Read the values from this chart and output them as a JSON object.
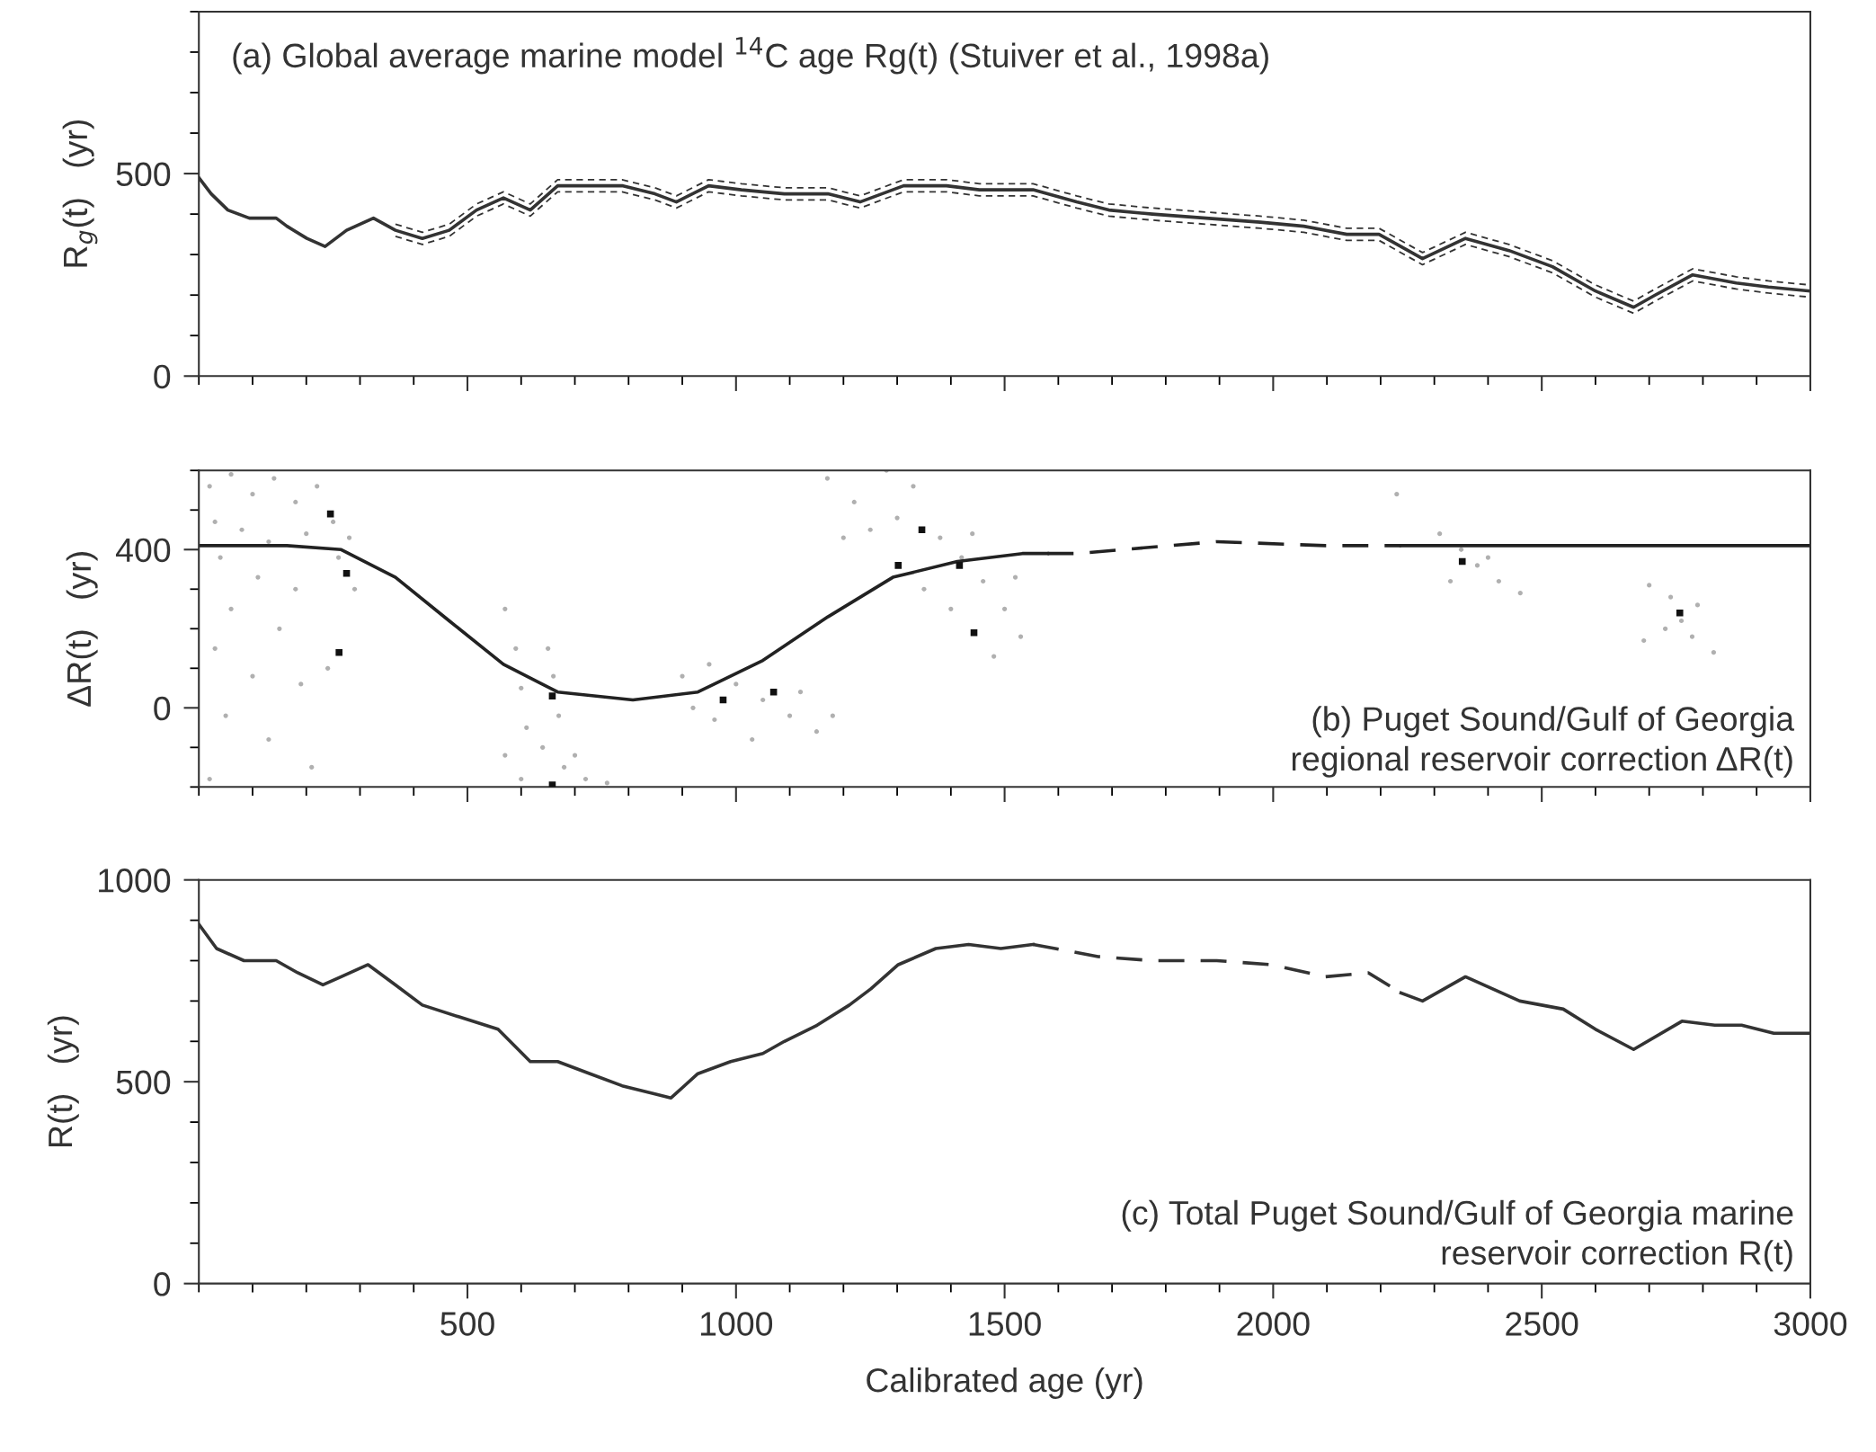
{
  "chart_data": [
    {
      "type": "line",
      "ylabel": "R$_{g}$(t)   (yr)",
      "annotations": [
        "(a) Global average marine model $^{14}$C age Rg(t) (Stuiver et al., 1998a)"
      ],
      "xlim": [
        0,
        3000
      ],
      "ylim": [
        0,
        900
      ],
      "tick_labels": "y",
      "grid": false,
      "xticks": [
        {
          "value": 0,
          "label": null
        },
        {
          "value": 100,
          "label": null
        },
        {
          "value": 200,
          "label": null
        },
        {
          "value": 300,
          "label": null
        },
        {
          "value": 400,
          "label": null
        },
        500,
        {
          "value": 600,
          "label": null
        },
        {
          "value": 700,
          "label": null
        },
        {
          "value": 800,
          "label": null
        },
        {
          "value": 900,
          "label": null
        },
        1000,
        {
          "value": 1100,
          "label": null
        },
        {
          "value": 1200,
          "label": null
        },
        {
          "value": 1300,
          "label": null
        },
        {
          "value": 1400,
          "label": null
        },
        1500,
        {
          "value": 1600,
          "label": null
        },
        {
          "value": 1700,
          "label": null
        },
        {
          "value": 1800,
          "label": null
        },
        {
          "value": 1900,
          "label": null
        },
        2000,
        {
          "value": 2100,
          "label": null
        },
        {
          "value": 2200,
          "label": null
        },
        {
          "value": 2300,
          "label": null
        },
        {
          "value": 2400,
          "label": null
        },
        2500,
        {
          "value": 2600,
          "label": null
        },
        {
          "value": 2700,
          "label": null
        },
        {
          "value": 2800,
          "label": null
        },
        {
          "value": 2900,
          "label": null
        },
        3000
      ],
      "yticks": [
        0,
        {
          "value": 100,
          "label": null
        },
        {
          "value": 200,
          "label": null
        },
        {
          "value": 300,
          "label": null
        },
        {
          "value": 400,
          "label": null
        },
        500,
        {
          "value": 600,
          "label": null
        },
        {
          "value": 700,
          "label": null
        },
        {
          "value": 800,
          "label": null
        },
        {
          "value": 900,
          "label": null
        }
      ],
      "series": [
        {
          "color": "#333333",
          "line_style": "solid",
          "x": [
            0,
            23,
            54,
            94,
            144,
            164,
            201,
            235,
            275,
            325,
            366,
            416,
            466,
            517,
            567,
            617,
            668,
            728,
            788,
            849,
            889,
            949,
            1010,
            1090,
            1171,
            1231,
            1312,
            1392,
            1453,
            1553,
            1634,
            1694,
            1775,
            1875,
            1976,
            2057,
            2137,
            2197,
            2278,
            2358,
            2439,
            2520,
            2600,
            2671,
            2711,
            2781,
            2862,
            2922,
            2999
          ],
          "values": [
            490,
            450,
            410,
            390,
            390,
            370,
            340,
            320,
            360,
            390,
            360,
            340,
            360,
            410,
            440,
            410,
            470,
            470,
            470,
            450,
            430,
            470,
            460,
            450,
            450,
            430,
            470,
            470,
            460,
            460,
            430,
            410,
            400,
            390,
            380,
            370,
            350,
            350,
            290,
            340,
            310,
            270,
            210,
            170,
            200,
            250,
            230,
            220,
            210
          ]
        },
        {
          "color": "#333333",
          "line_style": "dotted",
          "x": [
            366,
            416,
            466,
            517,
            567,
            617,
            668,
            728,
            788,
            849,
            889,
            949,
            1010,
            1090,
            1171,
            1231,
            1312,
            1392,
            1453,
            1553,
            1634,
            1694,
            1775,
            1875,
            1976,
            2057,
            2137,
            2197,
            2278,
            2358,
            2439,
            2520,
            2600,
            2671,
            2711,
            2781,
            2862,
            2922,
            2999
          ],
          "values": [
            345,
            325,
            345,
            395,
            425,
            395,
            455,
            455,
            455,
            435,
            415,
            455,
            445,
            435,
            435,
            415,
            455,
            455,
            445,
            445,
            415,
            395,
            385,
            375,
            365,
            355,
            335,
            335,
            275,
            325,
            295,
            255,
            195,
            155,
            185,
            235,
            215,
            205,
            195
          ]
        },
        {
          "color": "#333333",
          "line_style": "dotted",
          "x": [
            366,
            416,
            466,
            517,
            567,
            617,
            668,
            728,
            788,
            849,
            889,
            949,
            1010,
            1090,
            1171,
            1231,
            1312,
            1392,
            1453,
            1553,
            1634,
            1694,
            1775,
            1875,
            1976,
            2057,
            2137,
            2197,
            2278,
            2358,
            2439,
            2520,
            2600,
            2671,
            2711,
            2781,
            2862,
            2922,
            2999
          ],
          "values": [
            375,
            355,
            375,
            425,
            455,
            425,
            485,
            485,
            485,
            465,
            445,
            485,
            475,
            465,
            465,
            445,
            485,
            485,
            475,
            475,
            445,
            425,
            415,
            405,
            395,
            385,
            365,
            365,
            305,
            355,
            325,
            285,
            225,
            185,
            215,
            265,
            245,
            235,
            225
          ]
        }
      ]
    },
    {
      "type": "line",
      "ylabel": "ΔR(t)   (yr)",
      "annotations": [
        "(b) Puget Sound/Gulf of Georgia\nregional reservoir correction ΔR(t)"
      ],
      "xlim": [
        0,
        3000
      ],
      "ylim": [
        -200,
        600
      ],
      "tick_labels": "y",
      "grid": false,
      "xticks": [
        {
          "value": 0,
          "label": null
        },
        {
          "value": 100,
          "label": null
        },
        {
          "value": 200,
          "label": null
        },
        {
          "value": 300,
          "label": null
        },
        {
          "value": 400,
          "label": null
        },
        500,
        {
          "value": 600,
          "label": null
        },
        {
          "value": 700,
          "label": null
        },
        {
          "value": 800,
          "label": null
        },
        {
          "value": 900,
          "label": null
        },
        1000,
        {
          "value": 1100,
          "label": null
        },
        {
          "value": 1200,
          "label": null
        },
        {
          "value": 1300,
          "label": null
        },
        {
          "value": 1400,
          "label": null
        },
        1500,
        {
          "value": 1600,
          "label": null
        },
        {
          "value": 1700,
          "label": null
        },
        {
          "value": 1800,
          "label": null
        },
        {
          "value": 1900,
          "label": null
        },
        2000,
        {
          "value": 2100,
          "label": null
        },
        {
          "value": 2200,
          "label": null
        },
        {
          "value": 2300,
          "label": null
        },
        {
          "value": 2400,
          "label": null
        },
        2500,
        {
          "value": 2600,
          "label": null
        },
        {
          "value": 2700,
          "label": null
        },
        {
          "value": 2800,
          "label": null
        },
        {
          "value": 2900,
          "label": null
        },
        3000
      ],
      "yticks": [
        {
          "value": -200,
          "label": null
        },
        {
          "value": -100,
          "label": null
        },
        0,
        {
          "value": 100,
          "label": null
        },
        {
          "value": 200,
          "label": null
        },
        {
          "value": 300,
          "label": null
        },
        400,
        {
          "value": 500,
          "label": null
        },
        {
          "value": 600,
          "label": null
        }
      ],
      "series": [
        {
          "type": "scatter",
          "color": "#b0b0b0",
          "marker": "circle",
          "x": [
            20,
            60,
            100,
            140,
            180,
            220,
            250,
            280,
            30,
            80,
            130,
            200,
            260,
            290,
            40,
            110,
            60,
            150,
            30,
            100,
            190,
            50,
            130,
            210,
            20,
            240,
            180,
            570,
            590,
            600,
            610,
            650,
            660,
            670,
            640,
            570,
            600,
            680,
            720,
            760,
            700,
            900,
            950,
            1000,
            1050,
            1100,
            1150,
            1180,
            960,
            1030,
            1120,
            920,
            1170,
            1220,
            1280,
            1330,
            1250,
            1300,
            1380,
            1420,
            1460,
            1500,
            1530,
            1480,
            1400,
            1350,
            1200,
            1440,
            1520,
            2310,
            2350,
            2380,
            2420,
            2460,
            2330,
            2400,
            2700,
            2740,
            2760,
            2780,
            2820,
            2790,
            2730,
            2230,
            2690
          ],
          "values": [
            560,
            590,
            540,
            580,
            520,
            560,
            470,
            430,
            470,
            450,
            420,
            440,
            380,
            300,
            380,
            330,
            250,
            200,
            150,
            80,
            60,
            -20,
            -80,
            -150,
            -180,
            100,
            300,
            250,
            150,
            50,
            -50,
            150,
            80,
            -20,
            -100,
            -120,
            -180,
            -150,
            -180,
            -190,
            -120,
            80,
            110,
            60,
            20,
            -20,
            -60,
            -20,
            -30,
            -80,
            40,
            0,
            580,
            520,
            600,
            560,
            450,
            480,
            430,
            380,
            320,
            250,
            180,
            130,
            250,
            300,
            430,
            440,
            330,
            440,
            400,
            360,
            320,
            290,
            320,
            380,
            310,
            280,
            220,
            180,
            140,
            260,
            200,
            540,
            170
          ]
        },
        {
          "type": "scatter",
          "color": "#111111",
          "marker": "square",
          "x": [
            245,
            275,
            261,
            658,
            658,
            976,
            1070,
            1302,
            1346,
            1416,
            1443,
            2352,
            2757
          ],
          "values": [
            490,
            340,
            140,
            30,
            -195,
            20,
            40,
            360,
            450,
            360,
            190,
            370,
            240
          ]
        },
        {
          "color": "#222222",
          "line_style": "solid",
          "x": [
            0,
            164,
            265,
            366,
            466,
            567,
            668,
            808,
            929,
            1050,
            1171,
            1292,
            1412,
            1533,
            1580
          ],
          "values": [
            410,
            410,
            400,
            330,
            220,
            110,
            40,
            20,
            40,
            120,
            230,
            330,
            370,
            390,
            390
          ]
        },
        {
          "color": "#222222",
          "line_style": "dashed",
          "x": [
            1580,
            1634,
            1895,
            2097,
            2238
          ],
          "values": [
            390,
            390,
            420,
            410,
            410
          ]
        },
        {
          "color": "#222222",
          "line_style": "solid",
          "x": [
            2238,
            2278,
            2999
          ],
          "values": [
            410,
            410,
            410
          ]
        }
      ]
    },
    {
      "type": "line",
      "ylabel": "R(t)   (yr)",
      "xlabel": "Calibrated age (yr)",
      "annotations": [
        "(c) Total Puget Sound/Gulf of Georgia marine\nreservoir correction R(t)"
      ],
      "xlim": [
        0,
        3000
      ],
      "ylim": [
        0,
        1000
      ],
      "grid": false,
      "xticks": [
        {
          "value": 0,
          "label": null
        },
        {
          "value": 100,
          "label": null
        },
        {
          "value": 200,
          "label": null
        },
        {
          "value": 300,
          "label": null
        },
        {
          "value": 400,
          "label": null
        },
        500,
        {
          "value": 600,
          "label": null
        },
        {
          "value": 700,
          "label": null
        },
        {
          "value": 800,
          "label": null
        },
        {
          "value": 900,
          "label": null
        },
        1000,
        {
          "value": 1100,
          "label": null
        },
        {
          "value": 1200,
          "label": null
        },
        {
          "value": 1300,
          "label": null
        },
        {
          "value": 1400,
          "label": null
        },
        1500,
        {
          "value": 1600,
          "label": null
        },
        {
          "value": 1700,
          "label": null
        },
        {
          "value": 1800,
          "label": null
        },
        {
          "value": 1900,
          "label": null
        },
        2000,
        {
          "value": 2100,
          "label": null
        },
        {
          "value": 2200,
          "label": null
        },
        {
          "value": 2300,
          "label": null
        },
        {
          "value": 2400,
          "label": null
        },
        2500,
        {
          "value": 2600,
          "label": null
        },
        {
          "value": 2700,
          "label": null
        },
        {
          "value": 2800,
          "label": null
        },
        {
          "value": 2900,
          "label": null
        },
        3000
      ],
      "yticks": [
        0,
        {
          "value": 100,
          "label": null
        },
        {
          "value": 200,
          "label": null
        },
        {
          "value": 300,
          "label": null
        },
        {
          "value": 400,
          "label": null
        },
        500,
        {
          "value": 600,
          "label": null
        },
        {
          "value": 700,
          "label": null
        },
        {
          "value": 800,
          "label": null
        },
        {
          "value": 900,
          "label": null
        },
        1000
      ],
      "series": [
        {
          "color": "#333333",
          "line_style": "solid",
          "x": [
            0,
            33,
            84,
            144,
            184,
            231,
            265,
            315,
            366,
            416,
            486,
            557,
            617,
            668,
            728,
            788,
            849,
            879,
            929,
            990,
            1050,
            1090,
            1151,
            1211,
            1251,
            1302,
            1372,
            1433,
            1493,
            1553
          ],
          "values": [
            890,
            830,
            800,
            800,
            770,
            740,
            760,
            790,
            740,
            690,
            660,
            630,
            550,
            550,
            520,
            490,
            470,
            460,
            520,
            550,
            570,
            600,
            640,
            690,
            730,
            790,
            830,
            840,
            830,
            840
          ]
        },
        {
          "color": "#333333",
          "line_style": "dashed",
          "x": [
            1553,
            1594,
            1674,
            1775,
            1895,
            1996,
            2097,
            2177,
            2238
          ],
          "values": [
            840,
            830,
            810,
            800,
            800,
            790,
            760,
            770,
            720
          ]
        },
        {
          "color": "#333333",
          "line_style": "solid",
          "x": [
            2238,
            2278,
            2358,
            2459,
            2540,
            2600,
            2671,
            2761,
            2822,
            2872,
            2932,
            2999
          ],
          "values": [
            720,
            700,
            760,
            700,
            680,
            630,
            580,
            650,
            640,
            640,
            620,
            620
          ]
        }
      ]
    }
  ]
}
